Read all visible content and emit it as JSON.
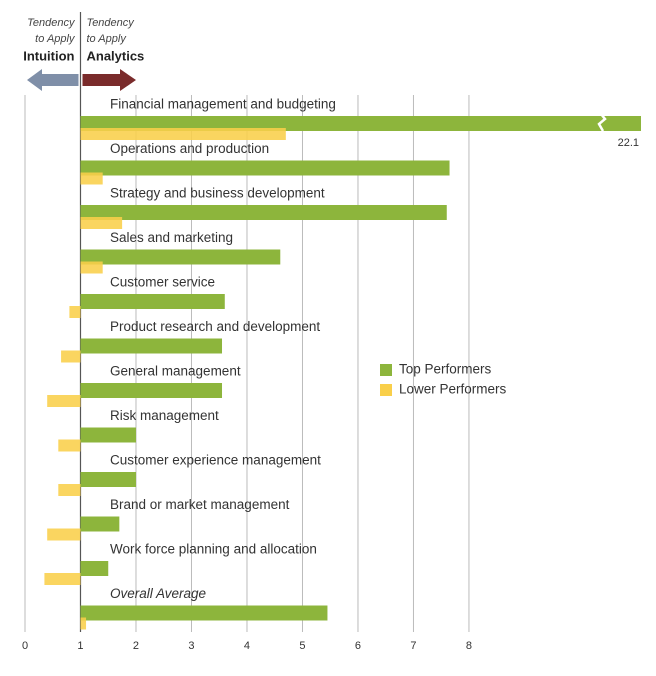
{
  "chart_data": {
    "type": "bar",
    "orientation": "horizontal",
    "header": {
      "left": {
        "lines": [
          "Tendency",
          "to Apply"
        ],
        "label": "Intuition",
        "color": "#7f8fa8"
      },
      "right": {
        "lines": [
          "Tendency",
          "to Apply"
        ],
        "label": "Analytics",
        "color": "#7a2b2b"
      }
    },
    "categories": [
      "Financial management and budgeting",
      "Operations and production",
      "Strategy and business development",
      "Sales and marketing",
      "Customer service",
      "Product research and development",
      "General management",
      "Risk management",
      "Customer experience management",
      "Brand or market management",
      "Work force planning and allocation",
      "Overall Average"
    ],
    "series": [
      {
        "name": "Top Performers",
        "color": "#8db53c",
        "values": [
          22.1,
          7.65,
          7.6,
          4.6,
          3.6,
          3.55,
          3.55,
          2.0,
          2.0,
          1.7,
          1.5,
          5.45
        ],
        "value_labels": [
          "22.1",
          null,
          null,
          null,
          null,
          null,
          null,
          null,
          null,
          null,
          null,
          null
        ]
      },
      {
        "name": "Lower Performers",
        "color": "#f9cf4a",
        "values": [
          4.7,
          1.4,
          1.75,
          1.4,
          0.8,
          0.65,
          0.4,
          0.6,
          0.6,
          0.4,
          0.35,
          1.1
        ]
      }
    ],
    "baseline": 1,
    "xlim": [
      0,
      11.1
    ],
    "xticks": [
      0,
      1,
      2,
      3,
      4,
      5,
      6,
      7,
      8
    ],
    "grid": true
  }
}
